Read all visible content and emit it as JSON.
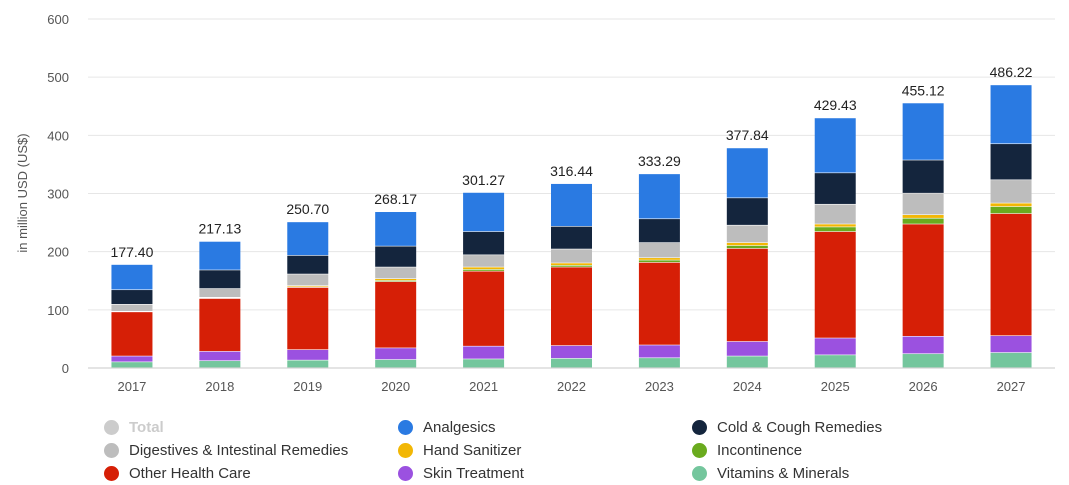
{
  "chart_data": {
    "type": "bar",
    "stacked": true,
    "ylabel": "in million USD (US$)",
    "ylim": [
      0,
      600
    ],
    "yticks": [
      0,
      100,
      200,
      300,
      400,
      500,
      600
    ],
    "grid": true,
    "legend_position": "bottom",
    "categories": [
      "2017",
      "2018",
      "2019",
      "2020",
      "2021",
      "2022",
      "2023",
      "2024",
      "2025",
      "2026",
      "2027"
    ],
    "totals": [
      "177.40",
      "217.13",
      "250.70",
      "268.17",
      "301.27",
      "316.44",
      "333.29",
      "377.84",
      "429.43",
      "455.12",
      "486.22"
    ],
    "series": [
      {
        "name": "Vitamins & Minerals",
        "color": "#74c69d",
        "values": [
          10,
          12,
          13,
          14,
          15,
          16,
          17,
          20,
          22,
          24,
          26
        ]
      },
      {
        "name": "Skin Treatment",
        "color": "#9b51e0",
        "values": [
          10,
          16,
          18,
          20,
          22,
          22,
          22,
          25,
          29,
          30,
          29
        ]
      },
      {
        "name": "Other Health Care",
        "color": "#d61f06",
        "values": [
          76,
          91,
          107,
          114,
          129,
          135,
          142,
          160,
          183,
          193,
          210
        ]
      },
      {
        "name": "Incontinence",
        "color": "#6aab1e",
        "values": [
          0,
          1,
          1,
          2,
          3,
          3,
          4,
          5,
          8,
          10,
          12
        ]
      },
      {
        "name": "Hand Sanitizer",
        "color": "#f2b705",
        "values": [
          1,
          1,
          2,
          3,
          4,
          4,
          4,
          5,
          5,
          6,
          6
        ]
      },
      {
        "name": "Digestives & Intestinal Remedies",
        "color": "#bdbdbd",
        "values": [
          12,
          15,
          20,
          20,
          21,
          24,
          26,
          30,
          34,
          37,
          40
        ]
      },
      {
        "name": "Cold & Cough Remedies",
        "color": "#14253d",
        "values": [
          25,
          32,
          32,
          36,
          40,
          39,
          41,
          47,
          54,
          57,
          62
        ]
      },
      {
        "name": "Analgesics",
        "color": "#2a7ae2",
        "values": [
          43.4,
          49.13,
          57.7,
          59.17,
          67.27,
          73.44,
          77.29,
          85.84,
          94.43,
          98.12,
          101.22
        ]
      }
    ]
  },
  "legend": {
    "items": [
      {
        "label": "Total",
        "color": "#cccccc",
        "dimmed": true
      },
      {
        "label": "Analgesics",
        "color": "#2a7ae2"
      },
      {
        "label": "Cold & Cough Remedies",
        "color": "#14253d"
      },
      {
        "label": "Digestives & Intestinal Remedies",
        "color": "#bdbdbd"
      },
      {
        "label": "Hand Sanitizer",
        "color": "#f2b705"
      },
      {
        "label": "Incontinence",
        "color": "#6aab1e"
      },
      {
        "label": "Other Health Care",
        "color": "#d61f06"
      },
      {
        "label": "Skin Treatment",
        "color": "#9b51e0"
      },
      {
        "label": "Vitamins & Minerals",
        "color": "#74c69d"
      }
    ]
  },
  "colors": {
    "grid": "#e6e6e6",
    "axis_text": "#555555",
    "total_text": "#222222"
  }
}
